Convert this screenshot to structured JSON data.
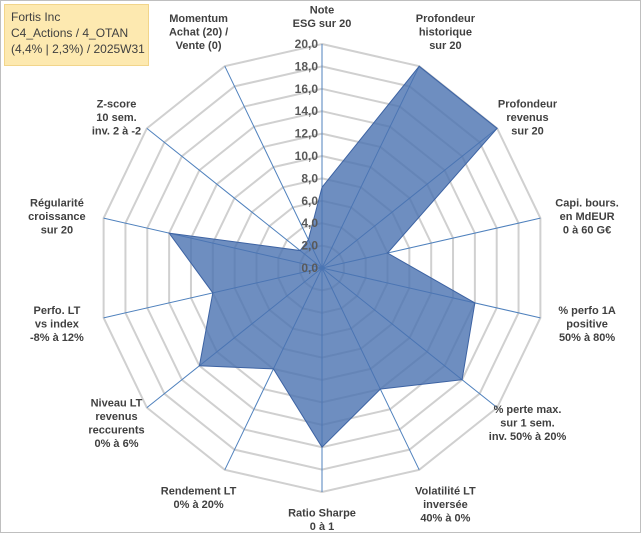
{
  "info": {
    "line1": "Fortis Inc",
    "line2": "C4_Actions / 4_OTAN",
    "line3": "(4,4% | 2,3%) / 2025W31"
  },
  "chart_data": {
    "type": "radar",
    "rmin": 0,
    "rmax": 20,
    "tick_values": [
      0,
      2,
      4,
      6,
      8,
      10,
      12,
      14,
      16,
      18,
      20
    ],
    "tick_labels": [
      "0,0",
      "2,0",
      "4,0",
      "6,0",
      "8,0",
      "10,0",
      "12,0",
      "14,0",
      "16,0",
      "18,0",
      "20,0"
    ],
    "categories": [
      [
        "Note",
        "ESG sur 20"
      ],
      [
        "Profondeur",
        "historique",
        "sur 20"
      ],
      [
        "Profondeur",
        "revenus",
        "sur 20"
      ],
      [
        "Capi. bours.",
        "en MdEUR",
        "0 à 60 G€"
      ],
      [
        "% perfo 1A",
        "positive",
        "50% à 80%"
      ],
      [
        "% perte max.",
        "sur 1 sem.",
        "inv. 50% à 20%"
      ],
      [
        "Volatilité LT",
        "inversée",
        "40% à 0%"
      ],
      [
        "Ratio Sharpe",
        "0 à 1"
      ],
      [
        "Rendement LT",
        "0% à 20%"
      ],
      [
        "Niveau LT",
        "revenus",
        "reccurents",
        "0% à 6%"
      ],
      [
        "Perfo. LT",
        "vs index",
        "-8% à 12%"
      ],
      [
        "Régularité",
        "croissance",
        "sur 20"
      ],
      [
        "Z-score",
        "10 sem.",
        "inv. 2 à -2"
      ],
      [
        "Momentum",
        "Achat (20) /",
        "Vente (0)"
      ]
    ],
    "series": [
      {
        "values": [
          7.2,
          20,
          20,
          6,
          14,
          16,
          12,
          16,
          10,
          14,
          10,
          14,
          2.5,
          2.8
        ]
      }
    ],
    "colors": {
      "fill": "#4a72b0",
      "fill_opacity": 0.8,
      "stroke": "#3d63a3",
      "spoke": "#4f81bd",
      "grid": "#d0d0d0"
    },
    "grid": true,
    "legend": "none"
  }
}
